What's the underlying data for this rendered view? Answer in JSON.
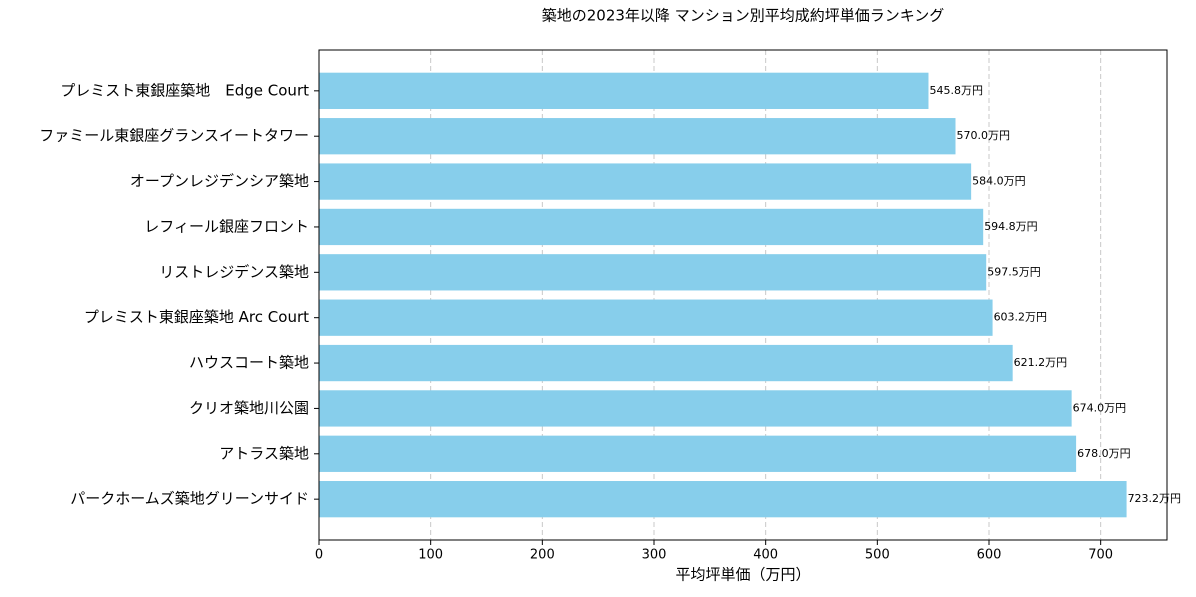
{
  "chart_data": {
    "type": "barh",
    "title": "築地の2023年以降 マンション別平均成約坪単価ランキング",
    "x_label": "平均坪単価（万円）",
    "categories": [
      "プレミスト東銀座築地　Edge Court",
      "ファミール東銀座グランスイートタワー",
      "オープンレジデンシア築地",
      "レフィール銀座フロント",
      "リストレジデンス築地",
      "プレミスト東銀座築地 Arc Court",
      "ハウスコート築地",
      "クリオ築地川公園",
      "アトラス築地",
      "パークホームズ築地グリーンサイド"
    ],
    "values": [
      545.8,
      570.0,
      584.0,
      594.8,
      597.5,
      603.2,
      621.2,
      674.0,
      678.0,
      723.2
    ],
    "value_labels": [
      "545.8万円",
      "570.0万円",
      "584.0万円",
      "594.8万円",
      "597.5万円",
      "603.2万円",
      "621.2万円",
      "674.0万円",
      "678.0万円",
      "723.2万円"
    ],
    "color": "#87ceeb",
    "xlim": [
      0,
      759.4
    ],
    "xticks": [
      0,
      100,
      200,
      300,
      400,
      500,
      600,
      700
    ],
    "grid": true
  }
}
